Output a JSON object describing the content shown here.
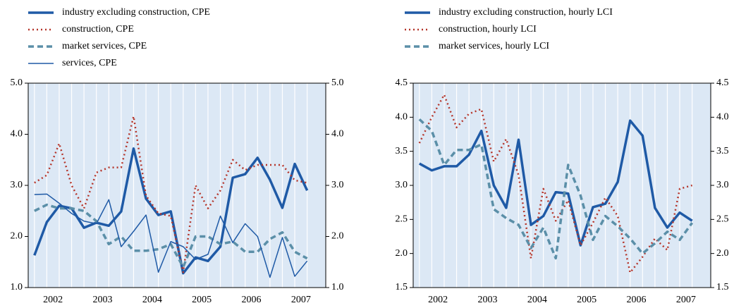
{
  "chart_data": [
    {
      "type": "line",
      "x": [
        2002.125,
        2002.375,
        2002.625,
        2002.875,
        2003.125,
        2003.375,
        2003.625,
        2003.875,
        2004.125,
        2004.375,
        2004.625,
        2004.875,
        2005.125,
        2005.375,
        2005.625,
        2005.875,
        2006.125,
        2006.375,
        2006.625,
        2006.875,
        2007.125,
        2007.375,
        2007.625
      ],
      "xlim": [
        2002,
        2008
      ],
      "xticks": [
        {
          "value": 2002.5,
          "label": "2002"
        },
        {
          "value": 2003.5,
          "label": "2003"
        },
        {
          "value": 2004.5,
          "label": "2004"
        },
        {
          "value": 2005.5,
          "label": "2005"
        },
        {
          "value": 2006.5,
          "label": "2006"
        },
        {
          "value": 2007.5,
          "label": "2007"
        }
      ],
      "ylim": [
        1,
        5
      ],
      "yticks": [
        {
          "value": 1,
          "label": "1.0"
        },
        {
          "value": 2,
          "label": "2.0"
        },
        {
          "value": 3,
          "label": "3.0"
        },
        {
          "value": 4,
          "label": "4.0"
        },
        {
          "value": 5,
          "label": "5.0"
        }
      ],
      "series": [
        {
          "name": "industry excluding construction, CPE",
          "color": "#1f5aa6",
          "style": "solid",
          "width": 3.5,
          "values": [
            1.63,
            2.28,
            2.6,
            2.55,
            2.17,
            2.27,
            2.21,
            2.49,
            3.72,
            2.74,
            2.42,
            2.49,
            1.28,
            1.59,
            1.52,
            1.8,
            3.15,
            3.22,
            3.54,
            3.11,
            2.56,
            3.42,
            2.9
          ]
        },
        {
          "name": "construction, CPE",
          "color": "#b5352a",
          "style": "dotted",
          "width": 2.5,
          "values": [
            3.05,
            3.2,
            3.82,
            3.0,
            2.55,
            3.25,
            3.35,
            3.35,
            4.35,
            2.8,
            2.45,
            2.4,
            1.3,
            3.0,
            2.55,
            2.9,
            3.5,
            3.3,
            3.4,
            3.4,
            3.4,
            3.1,
            3.05
          ]
        },
        {
          "name": "market services, CPE",
          "color": "#5b8fa8",
          "style": "dashed",
          "width": 3.5,
          "values": [
            2.5,
            2.62,
            2.55,
            2.55,
            2.5,
            2.3,
            1.85,
            2.0,
            1.72,
            1.72,
            1.75,
            1.85,
            1.4,
            2.0,
            2.0,
            1.85,
            1.9,
            1.7,
            1.7,
            1.95,
            2.08,
            1.7,
            1.57
          ]
        },
        {
          "name": "services, CPE",
          "color": "#1f5aa6",
          "style": "solid",
          "width": 1.5,
          "values": [
            2.82,
            2.83,
            2.65,
            2.45,
            2.3,
            2.25,
            2.72,
            1.8,
            2.1,
            2.42,
            1.3,
            1.9,
            1.8,
            1.55,
            1.65,
            2.4,
            1.88,
            2.25,
            2.0,
            1.2,
            1.98,
            1.22,
            1.52
          ]
        }
      ]
    },
    {
      "type": "line",
      "x": [
        2002.125,
        2002.375,
        2002.625,
        2002.875,
        2003.125,
        2003.375,
        2003.625,
        2003.875,
        2004.125,
        2004.375,
        2004.625,
        2004.875,
        2005.125,
        2005.375,
        2005.625,
        2005.875,
        2006.125,
        2006.375,
        2006.625,
        2006.875,
        2007.125,
        2007.375,
        2007.625
      ],
      "xlim": [
        2002,
        2008
      ],
      "xticks": [
        {
          "value": 2002.5,
          "label": "2002"
        },
        {
          "value": 2003.5,
          "label": "2003"
        },
        {
          "value": 2004.5,
          "label": "2004"
        },
        {
          "value": 2005.5,
          "label": "2005"
        },
        {
          "value": 2006.5,
          "label": "2006"
        },
        {
          "value": 2007.5,
          "label": "2007"
        }
      ],
      "ylim": [
        1.5,
        4.5
      ],
      "yticks": [
        1.5,
        {
          "value": 2,
          "label": "2.0"
        },
        2.5,
        {
          "value": 3,
          "label": "3.0"
        },
        3.5,
        {
          "value": 4,
          "label": "4.0"
        },
        4.5
      ],
      "series": [
        {
          "name": "industry excluding construction, hourly LCI",
          "color": "#1f5aa6",
          "style": "solid",
          "width": 3.5,
          "values": [
            3.32,
            3.22,
            3.28,
            3.28,
            3.45,
            3.8,
            3.0,
            2.67,
            3.67,
            2.42,
            2.55,
            2.9,
            2.88,
            2.12,
            2.68,
            2.73,
            3.05,
            3.95,
            3.73,
            2.67,
            2.38,
            2.6,
            2.48
          ]
        },
        {
          "name": "construction, hourly LCI",
          "color": "#b5352a",
          "style": "dotted",
          "width": 2.5,
          "values": [
            3.62,
            4.0,
            4.33,
            3.85,
            4.05,
            4.12,
            3.35,
            3.68,
            3.15,
            1.93,
            2.95,
            2.48,
            2.78,
            2.12,
            2.45,
            2.82,
            2.55,
            1.72,
            1.95,
            2.22,
            2.05,
            2.95,
            3.0
          ]
        },
        {
          "name": "market services, hourly LCI",
          "color": "#5b8fa8",
          "style": "dashed",
          "width": 3.5,
          "values": [
            3.97,
            3.8,
            3.3,
            3.52,
            3.52,
            3.6,
            2.65,
            2.52,
            2.42,
            2.08,
            2.38,
            1.93,
            3.3,
            2.85,
            2.2,
            2.55,
            2.4,
            2.22,
            2.0,
            2.15,
            2.32,
            2.2,
            2.45
          ]
        }
      ]
    }
  ]
}
